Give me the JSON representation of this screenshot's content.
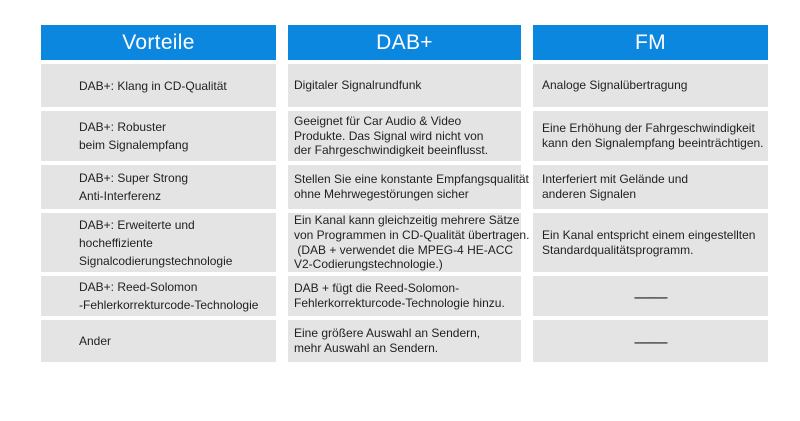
{
  "chart_data": {
    "type": "table",
    "columns": [
      "Vorteile",
      "DAB+",
      "FM"
    ],
    "rows": [
      [
        "DAB+: Klang in CD-Qualität",
        "Digitaler Signalrundfunk",
        "Analoge Signalübertragung"
      ],
      [
        "DAB+: Robuster\nbeim Signalempfang",
        "Geeignet für Car Audio & Video\nProdukte. Das Signal wird nicht von\nder Fahrgeschwindigkeit beeinflusst.",
        "Eine Erhöhung der Fahrgeschwindigkeit\nkann den Signalempfang beeinträchtigen."
      ],
      [
        "DAB+: Super Strong\nAnti-Interferenz",
        "Stellen Sie eine konstante Empfangsqualität\nohne Mehrwegestörungen sicher",
        "Interferiert mit Gelände und\nanderen Signalen"
      ],
      [
        "DAB+: Erweiterte und\nhocheffiziente\nSignalcodierungstechnologie",
        "Ein Kanal kann gleichzeitig mehrere Sätze\nvon Programmen in CD-Qualität übertragen.\n (DAB + verwendet die MPEG-4 HE-ACC\nV2-Codierungstechnologie.)",
        "Ein Kanal entspricht einem eingestellten\nStandardqualitätsprogramm."
      ],
      [
        "DAB+: Reed-Solomon\n-Fehlerkorrekturcode-Technologie",
        "DAB + fügt die Reed-Solomon-\nFehlerkorrekturcode-Technologie hinzu.",
        "——"
      ],
      [
        "Ander",
        "Eine größere Auswahl an Sendern,\nmehr Auswahl an Sendern.",
        "——"
      ]
    ],
    "layout_hints": {
      "header_row": true,
      "grid": false,
      "empty_marker": "——"
    }
  },
  "colors": {
    "header_bg": "#0c87e0",
    "header_text": "#ffffff",
    "cell_bg": "#e4e4e4",
    "body_text": "#1f1f1f"
  }
}
